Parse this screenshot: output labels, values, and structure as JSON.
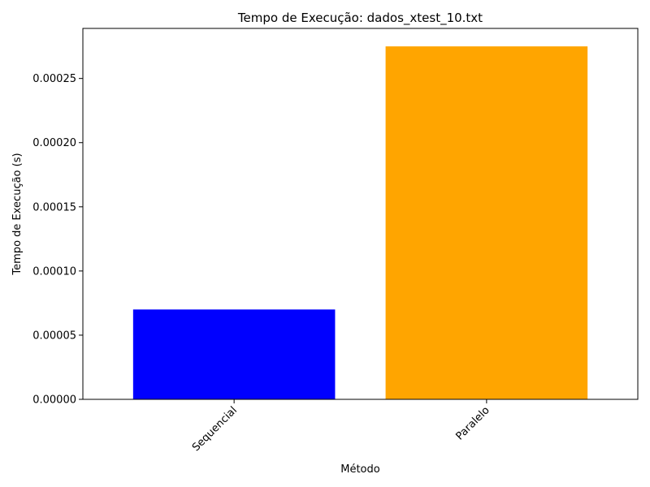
{
  "chart_data": {
    "type": "bar",
    "title": "Tempo de Execução:  dados_xtest_10.txt",
    "xlabel": "Método",
    "ylabel": "Tempo de Execução (s)",
    "categories": [
      "Sequencial",
      "Paralelo"
    ],
    "values": [
      7e-05,
      0.000275
    ],
    "colors": [
      "#0000ff",
      "#ffa500"
    ],
    "ylim": [
      0,
      0.000289
    ],
    "yticks": [
      0,
      5e-05,
      0.0001,
      0.00015,
      0.0002,
      0.00025
    ],
    "ytick_labels": [
      "0.00000",
      "0.00005",
      "0.00010",
      "0.00015",
      "0.00020",
      "0.00025"
    ],
    "grid": false,
    "legend": "none"
  }
}
